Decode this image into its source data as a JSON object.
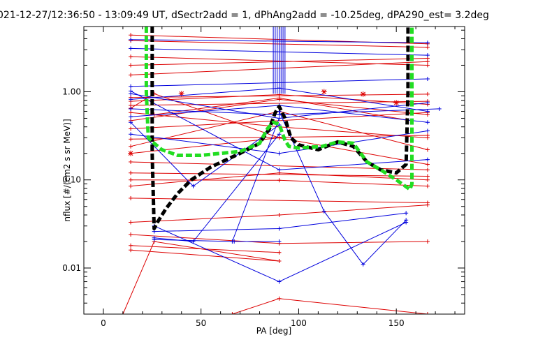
{
  "chart_data": {
    "type": "line",
    "title": "021-12-27/12:36:50 - 13:09:49 UT, dSectr2add = 1, dPhAng2add = -10.25deg, dPA290_est=    3.2deg",
    "xlabel": "PA [deg]",
    "ylabel": "nflux [#/(cm2 s sr MeV)]",
    "xlim": [
      -10,
      185
    ],
    "ylim": [
      0.003,
      5.5
    ],
    "yscale": "log",
    "grid": false,
    "x_ticks": [
      0,
      50,
      100,
      150
    ],
    "x_tick_labels": [
      "0",
      "50",
      "100",
      "150"
    ],
    "y_ticks": [
      0.01,
      0.1,
      1.0
    ],
    "y_tick_labels": [
      "0.01",
      "0.10",
      "1.00"
    ],
    "colors": {
      "red": "#dd0000",
      "blue": "#0000dd",
      "black": "#000000",
      "green": "#22dd22"
    },
    "series": [
      {
        "color": "red",
        "style": "thin-plus",
        "lines": [
          [
            [
              14,
              4.4
            ],
            [
              166,
              3.5
            ]
          ],
          [
            [
              14,
              3.8
            ],
            [
              166,
              3.2
            ]
          ],
          [
            [
              14,
              2.5
            ],
            [
              166,
              2.0
            ]
          ],
          [
            [
              14,
              2.0
            ],
            [
              166,
              2.4
            ]
          ],
          [
            [
              14,
              1.55
            ],
            [
              166,
              2.2
            ]
          ],
          [
            [
              14,
              0.86
            ],
            [
              166,
              0.94
            ]
          ],
          [
            [
              14,
              0.78
            ],
            [
              90,
              0.93
            ],
            [
              166,
              0.72
            ]
          ],
          [
            [
              14,
              0.7
            ],
            [
              166,
              0.78
            ]
          ],
          [
            [
              14,
              0.58
            ],
            [
              90,
              0.4
            ],
            [
              166,
              0.3
            ]
          ],
          [
            [
              14,
              0.47
            ],
            [
              90,
              0.82
            ],
            [
              166,
              0.55
            ]
          ],
          [
            [
              14,
              0.38
            ],
            [
              166,
              0.58
            ]
          ],
          [
            [
              14,
              0.29
            ],
            [
              166,
              0.32
            ]
          ],
          [
            [
              14,
              0.24
            ],
            [
              90,
              0.6
            ],
            [
              166,
              0.22
            ]
          ],
          [
            [
              14,
              0.2
            ],
            [
              90,
              0.3
            ],
            [
              166,
              0.15
            ]
          ],
          [
            [
              14,
              0.16
            ],
            [
              166,
              0.13
            ]
          ],
          [
            [
              14,
              0.12
            ],
            [
              166,
              0.11
            ]
          ],
          [
            [
              14,
              0.1
            ],
            [
              90,
              0.099
            ],
            [
              166,
              0.085
            ]
          ],
          [
            [
              14,
              0.085
            ],
            [
              90,
              0.12
            ],
            [
              166,
              0.1
            ]
          ],
          [
            [
              14,
              0.062
            ],
            [
              166,
              0.055
            ]
          ],
          [
            [
              14,
              0.033
            ],
            [
              90,
              0.04
            ],
            [
              166,
              0.052
            ]
          ],
          [
            [
              14,
              0.024
            ],
            [
              90,
              0.019
            ],
            [
              166,
              0.02
            ]
          ],
          [
            [
              14,
              0.018
            ],
            [
              90,
              0.015
            ]
          ],
          [
            [
              14,
              0.016
            ],
            [
              90,
              0.012
            ]
          ],
          [
            [
              10,
              0.003
            ],
            [
              26,
              0.02
            ],
            [
              90,
              0.012
            ]
          ],
          [
            [
              14,
              0.65
            ],
            [
              26,
              0.95
            ],
            [
              90,
              0.3
            ]
          ],
          [
            [
              26,
              0.55
            ],
            [
              90,
              0.85
            ],
            [
              155,
              0.48
            ]
          ],
          [
            [
              66,
              0.003
            ],
            [
              90,
              0.0045
            ],
            [
              166,
              0.003
            ]
          ]
        ],
        "asterisks": [
          [
            14,
            0.2
          ],
          [
            40,
            0.95
          ],
          [
            113,
            1.0
          ],
          [
            133,
            0.94
          ],
          [
            150,
            0.75
          ]
        ]
      },
      {
        "color": "blue",
        "style": "thin-plus",
        "lines": [
          [
            [
              14,
              3.9
            ],
            [
              166,
              3.6
            ]
          ],
          [
            [
              14,
              3.1
            ],
            [
              166,
              2.6
            ]
          ],
          [
            [
              14,
              1.15
            ],
            [
              166,
              1.4
            ]
          ],
          [
            [
              14,
              0.95
            ],
            [
              90,
              0.5
            ],
            [
              166,
              0.75
            ]
          ],
          [
            [
              14,
              0.82
            ],
            [
              90,
              1.1
            ],
            [
              166,
              0.6
            ]
          ],
          [
            [
              14,
              0.64
            ],
            [
              90,
              0.55
            ],
            [
              172,
              0.64
            ]
          ],
          [
            [
              14,
              0.52
            ],
            [
              90,
              0.7
            ],
            [
              166,
              0.45
            ]
          ],
          [
            [
              14,
              0.33
            ],
            [
              90,
              0.2
            ],
            [
              166,
              0.36
            ]
          ],
          [
            [
              14,
              1.02
            ],
            [
              90,
              0.13
            ],
            [
              166,
              0.17
            ]
          ],
          [
            [
              14,
              0.45
            ],
            [
              46,
              0.085
            ],
            [
              90,
              0.42
            ]
          ],
          [
            [
              26,
              0.026
            ],
            [
              90,
              0.028
            ],
            [
              155,
              0.042
            ]
          ],
          [
            [
              26,
              0.022
            ],
            [
              46,
              0.02
            ],
            [
              90,
              0.33
            ]
          ],
          [
            [
              26,
              0.03
            ],
            [
              90,
              0.007
            ],
            [
              155,
              0.033
            ]
          ],
          [
            [
              26,
              0.021
            ],
            [
              67,
              0.02
            ],
            [
              90,
              0.02
            ]
          ],
          [
            [
              90,
              0.6
            ],
            [
              113,
              0.044
            ],
            [
              133,
              0.011
            ],
            [
              155,
              0.035
            ]
          ],
          [
            [
              66,
              0.02
            ],
            [
              90,
              0.5
            ]
          ]
        ],
        "spikes_x": [
          87,
          88,
          89,
          90,
          91,
          92,
          93
        ]
      },
      {
        "color": "black",
        "style": "thick-dashed",
        "x": [
          25,
          25,
          26,
          28,
          32,
          38,
          45,
          55,
          70,
          80,
          85,
          88,
          90,
          93,
          96,
          100,
          110,
          120,
          128,
          135,
          142,
          150,
          155,
          156,
          156
        ],
        "y": [
          5.5,
          0.2,
          0.028,
          0.034,
          0.047,
          0.07,
          0.1,
          0.14,
          0.2,
          0.26,
          0.38,
          0.58,
          0.68,
          0.5,
          0.3,
          0.25,
          0.22,
          0.27,
          0.24,
          0.16,
          0.13,
          0.12,
          0.15,
          1.0,
          5.5
        ]
      },
      {
        "color": "green",
        "style": "thick-dashed",
        "x": [
          22,
          22,
          23,
          26,
          30,
          38,
          50,
          60,
          70,
          80,
          84,
          87,
          90,
          93,
          95,
          100,
          112,
          120,
          128,
          135,
          142,
          150,
          157,
          158,
          158
        ],
        "y": [
          5.5,
          1.0,
          0.3,
          0.26,
          0.22,
          0.19,
          0.19,
          0.2,
          0.21,
          0.26,
          0.38,
          0.45,
          0.43,
          0.28,
          0.24,
          0.23,
          0.24,
          0.27,
          0.26,
          0.16,
          0.13,
          0.1,
          0.078,
          0.09,
          5.5
        ]
      }
    ]
  }
}
